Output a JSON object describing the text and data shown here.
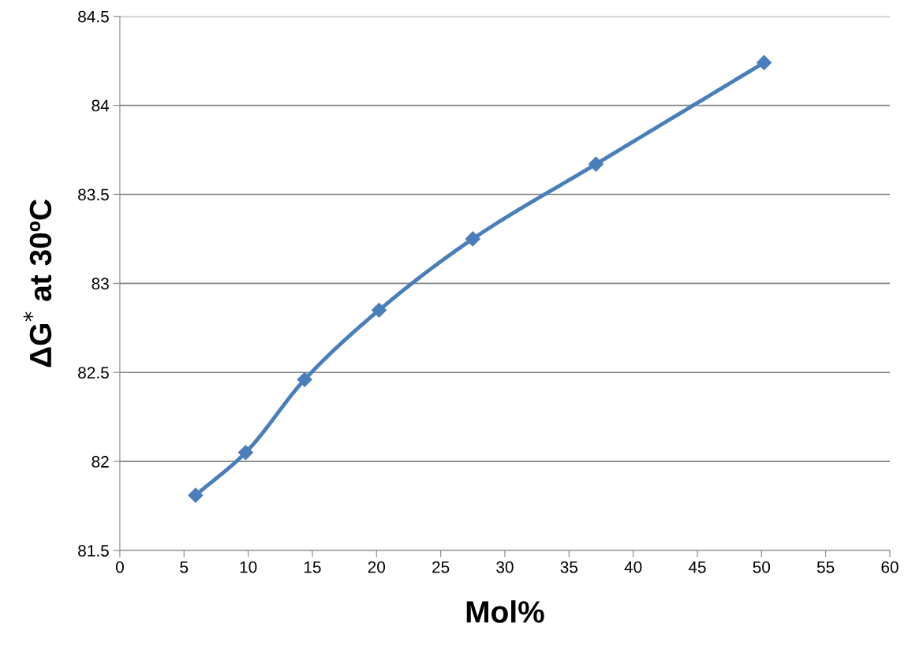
{
  "chart_data": {
    "type": "line",
    "xlabel": "Mol%",
    "ylabel": "ΔG$^{*}$ at 30ºC",
    "x": [
      5.9,
      9.8,
      14.4,
      20.2,
      27.5,
      37.1,
      50.2
    ],
    "series": [
      {
        "color": "#4a7ebb",
        "values": [
          81.81,
          82.05,
          82.46,
          82.85,
          83.25,
          83.67,
          84.24
        ]
      }
    ],
    "xlim": [
      0,
      60
    ],
    "xticks": [
      0,
      5,
      10,
      15,
      20,
      25,
      30,
      35,
      40,
      45,
      50,
      55,
      60
    ],
    "ylim": [
      81.5,
      84.5
    ],
    "yticks": [
      81.5,
      82,
      82.5,
      83,
      83.5,
      84,
      84.5
    ],
    "grid": "y",
    "marker": "diamond",
    "line_style": "solid",
    "legend": false
  }
}
